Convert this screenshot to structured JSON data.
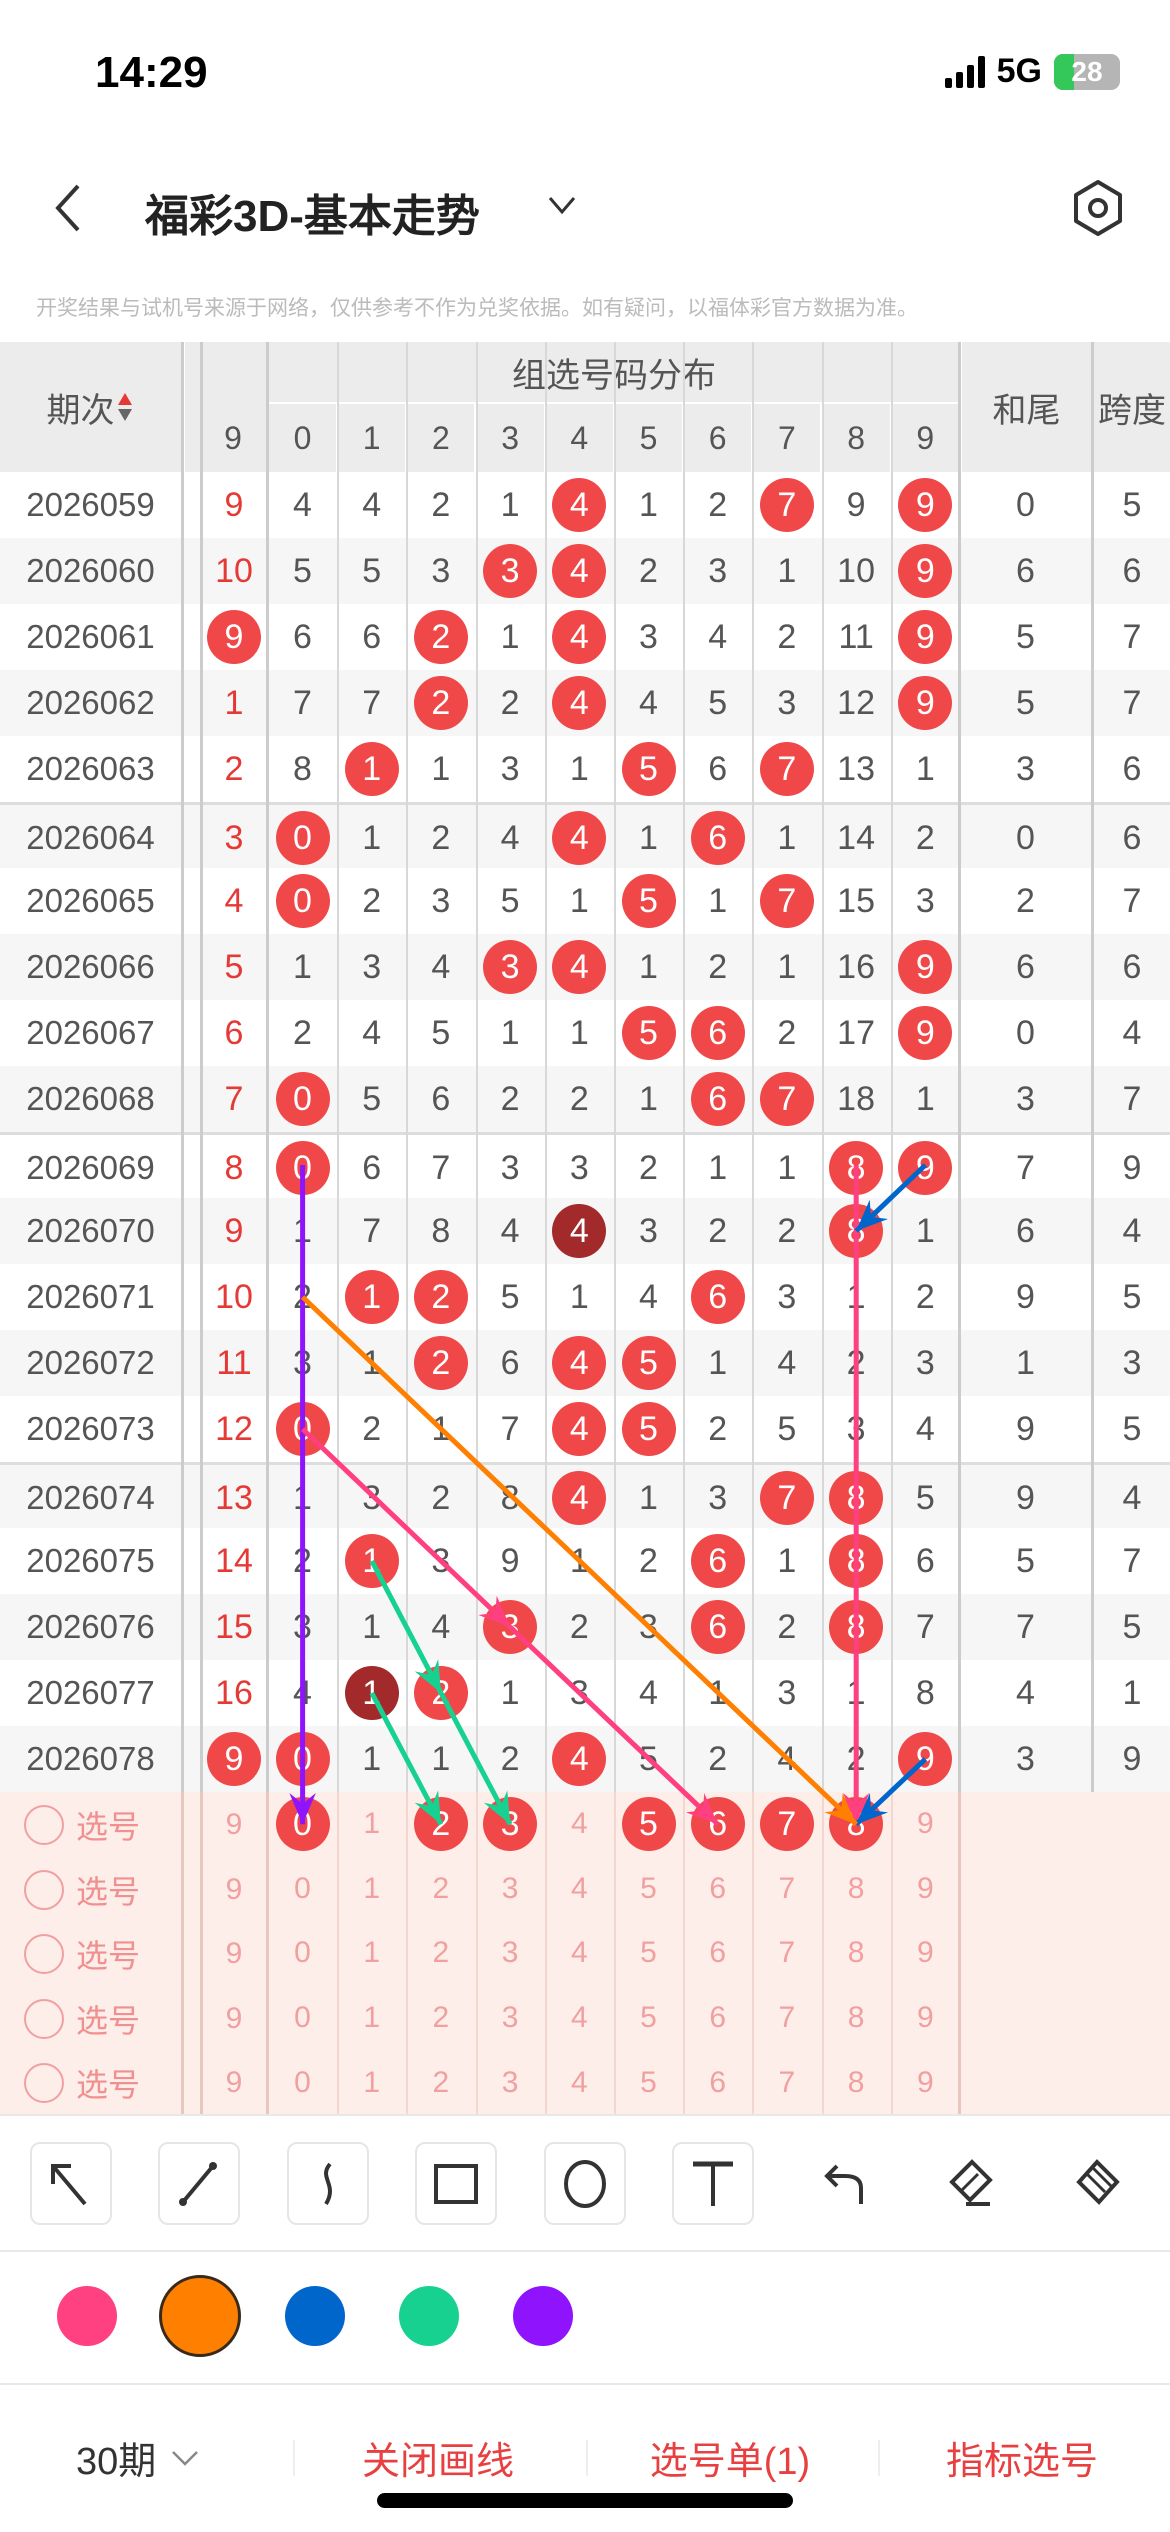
{
  "status_bar": {
    "time": "14:29",
    "network": "5G",
    "battery": "28"
  },
  "nav": {
    "title": "福彩3D-基本走势",
    "back_icon": "chevron-left-icon",
    "dropdown_icon": "chevron-down-icon",
    "settings_icon": "hexagon-settings-icon"
  },
  "disclaimer": "开奖结果与试机号来源于网络，仅供参考不作为兑奖依据。如有疑问，以福体彩官方数据为准。",
  "table": {
    "header": {
      "period": "期次",
      "sort_icon": "sort-up-down-icon",
      "group": "组选号码分布",
      "prev_col": "9",
      "digits": [
        "0",
        "1",
        "2",
        "3",
        "4",
        "5",
        "6",
        "7",
        "8",
        "9"
      ],
      "sum_tail": "和尾",
      "span": "跨度"
    },
    "ball_color": "#f04848",
    "repeat_ball_color": "#a22a2a",
    "rows": [
      {
        "period": "2026059",
        "prev": "9",
        "prev_ball": false,
        "cells": [
          "4",
          "4",
          "2",
          "1",
          "B",
          "1",
          "2",
          "B",
          "9",
          "B"
        ],
        "sum_tail": "0",
        "span": "5"
      },
      {
        "period": "2026060",
        "prev": "10",
        "prev_ball": false,
        "cells": [
          "5",
          "5",
          "3",
          "B",
          "B",
          "2",
          "3",
          "1",
          "10",
          "B"
        ],
        "sum_tail": "6",
        "span": "6"
      },
      {
        "period": "2026061",
        "prev": "9",
        "prev_ball": true,
        "cells": [
          "6",
          "6",
          "B",
          "1",
          "B",
          "3",
          "4",
          "2",
          "11",
          "B"
        ],
        "sum_tail": "5",
        "span": "7"
      },
      {
        "period": "2026062",
        "prev": "1",
        "prev_ball": false,
        "cells": [
          "7",
          "7",
          "B",
          "2",
          "B",
          "4",
          "5",
          "3",
          "12",
          "B"
        ],
        "sum_tail": "5",
        "span": "7"
      },
      {
        "period": "2026063",
        "prev": "2",
        "prev_ball": false,
        "cells": [
          "8",
          "B",
          "1",
          "3",
          "1",
          "B",
          "6",
          "B",
          "13",
          "1"
        ],
        "sum_tail": "3",
        "span": "6"
      },
      {
        "period": "2026064",
        "prev": "3",
        "prev_ball": false,
        "cells": [
          "B",
          "1",
          "2",
          "4",
          "B",
          "1",
          "B",
          "1",
          "14",
          "2"
        ],
        "sum_tail": "0",
        "span": "6"
      },
      {
        "period": "2026065",
        "prev": "4",
        "prev_ball": false,
        "cells": [
          "B",
          "2",
          "3",
          "5",
          "1",
          "B",
          "1",
          "B",
          "15",
          "3"
        ],
        "sum_tail": "2",
        "span": "7"
      },
      {
        "period": "2026066",
        "prev": "5",
        "prev_ball": false,
        "cells": [
          "1",
          "3",
          "4",
          "B",
          "B",
          "1",
          "2",
          "1",
          "16",
          "B"
        ],
        "sum_tail": "6",
        "span": "6"
      },
      {
        "period": "2026067",
        "prev": "6",
        "prev_ball": false,
        "cells": [
          "2",
          "4",
          "5",
          "1",
          "1",
          "B",
          "B",
          "2",
          "17",
          "B"
        ],
        "sum_tail": "0",
        "span": "4"
      },
      {
        "period": "2026068",
        "prev": "7",
        "prev_ball": false,
        "cells": [
          "B",
          "5",
          "6",
          "2",
          "2",
          "1",
          "B",
          "B",
          "18",
          "1"
        ],
        "sum_tail": "3",
        "span": "7"
      },
      {
        "period": "2026069",
        "prev": "8",
        "prev_ball": false,
        "cells": [
          "B",
          "6",
          "7",
          "3",
          "3",
          "2",
          "1",
          "1",
          "B",
          "B"
        ],
        "sum_tail": "7",
        "span": "9"
      },
      {
        "period": "2026070",
        "prev": "9",
        "prev_ball": false,
        "cells": [
          "1",
          "7",
          "8",
          "4",
          "D",
          "3",
          "2",
          "2",
          "B",
          "1"
        ],
        "sum_tail": "6",
        "span": "4"
      },
      {
        "period": "2026071",
        "prev": "10",
        "prev_ball": false,
        "cells": [
          "2",
          "B",
          "B",
          "5",
          "1",
          "4",
          "B",
          "3",
          "1",
          "2"
        ],
        "sum_tail": "9",
        "span": "5"
      },
      {
        "period": "2026072",
        "prev": "11",
        "prev_ball": false,
        "cells": [
          "3",
          "1",
          "B",
          "6",
          "B",
          "B",
          "1",
          "4",
          "2",
          "3"
        ],
        "sum_tail": "1",
        "span": "3"
      },
      {
        "period": "2026073",
        "prev": "12",
        "prev_ball": false,
        "cells": [
          "B",
          "2",
          "1",
          "7",
          "B",
          "B",
          "2",
          "5",
          "3",
          "4"
        ],
        "sum_tail": "9",
        "span": "5"
      },
      {
        "period": "2026074",
        "prev": "13",
        "prev_ball": false,
        "cells": [
          "1",
          "3",
          "2",
          "8",
          "B",
          "1",
          "3",
          "B",
          "B",
          "5"
        ],
        "sum_tail": "9",
        "span": "4"
      },
      {
        "period": "2026075",
        "prev": "14",
        "prev_ball": false,
        "cells": [
          "2",
          "B",
          "3",
          "9",
          "1",
          "2",
          "B",
          "1",
          "B",
          "6"
        ],
        "sum_tail": "5",
        "span": "7"
      },
      {
        "period": "2026076",
        "prev": "15",
        "prev_ball": false,
        "cells": [
          "3",
          "1",
          "4",
          "B",
          "2",
          "3",
          "B",
          "2",
          "B",
          "7"
        ],
        "sum_tail": "7",
        "span": "5"
      },
      {
        "period": "2026077",
        "prev": "16",
        "prev_ball": false,
        "cells": [
          "4",
          "D",
          "B",
          "1",
          "3",
          "4",
          "1",
          "3",
          "1",
          "8"
        ],
        "sum_tail": "4",
        "span": "1"
      },
      {
        "period": "2026078",
        "prev": "9",
        "prev_ball": true,
        "cells": [
          "B",
          "1",
          "1",
          "2",
          "B",
          "5",
          "2",
          "4",
          "2",
          "B"
        ],
        "sum_tail": "3",
        "span": "9"
      }
    ],
    "selection_label": "选号",
    "selection_rows": [
      {
        "selected": [
          0,
          2,
          3,
          5,
          6,
          7,
          8
        ]
      },
      {
        "selected": []
      },
      {
        "selected": []
      },
      {
        "selected": []
      },
      {
        "selected": []
      }
    ],
    "drawn_lines": [
      {
        "color": "#9013fe",
        "from": [
          "2026069",
          0
        ],
        "to": [
          "select-1",
          0
        ],
        "arrow": true
      },
      {
        "color": "#ff3f7f",
        "from": [
          "2026069",
          8
        ],
        "to": [
          "select-1",
          8
        ],
        "arrow": true
      },
      {
        "color": "#0066cc",
        "from": [
          "2026069",
          9
        ],
        "to": [
          "2026070",
          8
        ],
        "arrow": true
      },
      {
        "color": "#0066cc",
        "from": [
          "2026078",
          9
        ],
        "to": [
          "select-1",
          8
        ],
        "arrow": true
      },
      {
        "color": "#ff7f00",
        "from": [
          "2026071",
          0
        ],
        "to": [
          "select-1",
          8
        ],
        "arrow": true
      },
      {
        "color": "#ff3f7f",
        "from": [
          "2026073",
          0
        ],
        "to": [
          "2026076",
          3
        ],
        "arrow": true
      },
      {
        "color": "#ff3f7f",
        "from": [
          "2026076",
          3
        ],
        "to": [
          "select-1",
          6
        ],
        "arrow": true
      },
      {
        "color": "#17d191",
        "from": [
          "2026075",
          1
        ],
        "to": [
          "2026077",
          2
        ],
        "arrow": true
      },
      {
        "color": "#17d191",
        "from": [
          "2026077",
          1
        ],
        "to": [
          "select-1",
          2
        ],
        "arrow": true
      },
      {
        "color": "#17d191",
        "from": [
          "2026077",
          2
        ],
        "to": [
          "select-1",
          3
        ],
        "arrow": true
      }
    ]
  },
  "toolbar": {
    "tools": [
      "arrow-tool-icon",
      "line-tool-icon",
      "curve-tool-icon",
      "rectangle-tool-icon",
      "circle-tool-icon",
      "text-tool-icon"
    ],
    "actions": [
      "undo-icon",
      "eraser-icon",
      "clear-brush-icon"
    ]
  },
  "palette": {
    "colors": [
      "#ff4081",
      "#ff7f00",
      "#0066cc",
      "#17d191",
      "#9013fe"
    ],
    "selected": "#ff7f00"
  },
  "bottom": {
    "period_select": "30期",
    "close_draw": "关闭画线",
    "pick_list": "选号单(1)",
    "indicator_pick": "指标选号"
  }
}
